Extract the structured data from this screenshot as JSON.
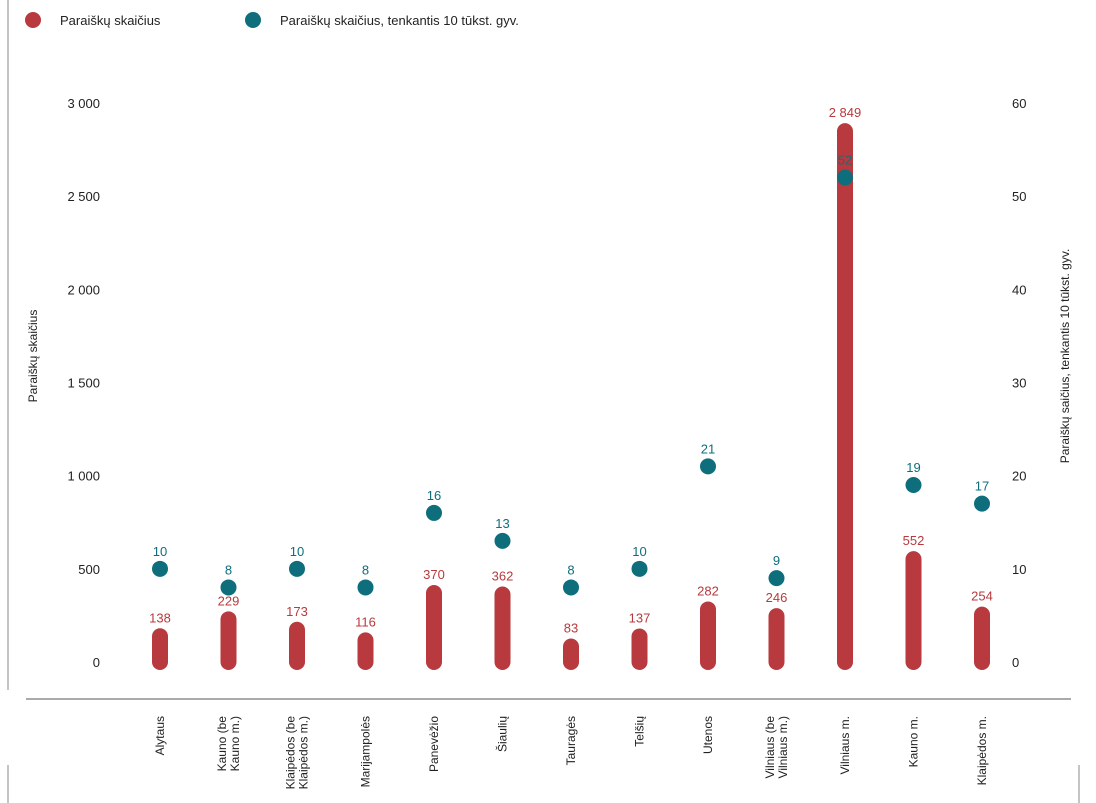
{
  "chart_data": {
    "type": "bar",
    "categories": [
      [
        "Alytaus"
      ],
      [
        "Kauno (be",
        "Kauno m.)"
      ],
      [
        "Klaipėdos (be",
        "Klaipėdos m.)"
      ],
      [
        "Marijampolės"
      ],
      [
        "Panevėžio"
      ],
      [
        "Šiaulių"
      ],
      [
        "Tauragės"
      ],
      [
        "Telšių"
      ],
      [
        "Utenos"
      ],
      [
        "Vilniaus (be",
        "Vilniaus m.)"
      ],
      [
        "Vilniaus m."
      ],
      [
        "Kauno m."
      ],
      [
        "Klaipėdos m."
      ]
    ],
    "series": [
      {
        "name": "Paraiškų skaičius",
        "axis": "left",
        "color": "#b83a3e",
        "values": [
          138,
          229,
          173,
          116,
          370,
          362,
          83,
          137,
          282,
          246,
          2849,
          552,
          254
        ],
        "labels": [
          "138",
          "229",
          "173",
          "116",
          "370",
          "362",
          "83",
          "137",
          "282",
          "246",
          "2 849",
          "552",
          "254"
        ]
      },
      {
        "name": "Paraiškų skaičius, tenkantis 10 tūkst. gyv.",
        "axis": "right",
        "color": "#0e6e7c",
        "values": [
          10,
          8,
          10,
          8,
          16,
          13,
          8,
          10,
          21,
          9,
          52,
          19,
          17
        ],
        "labels": [
          "10",
          "8",
          "10",
          "8",
          "16",
          "13",
          "8",
          "10",
          "21",
          "9",
          "52",
          "19",
          "17"
        ]
      }
    ],
    "y_left": {
      "label": "Paraiškų skaičius",
      "ylim": [
        0,
        3000
      ],
      "ticks": [
        0,
        500,
        1000,
        1500,
        2000,
        2500,
        3000
      ],
      "tick_labels": [
        "0",
        "500",
        "1 000",
        "1 500",
        "2 000",
        "2 500",
        "3 000"
      ]
    },
    "y_right": {
      "label": "Paraiškų saičius, tenkantis 10 tūkst. gyv.",
      "ylim": [
        0,
        60
      ],
      "ticks": [
        0,
        10,
        20,
        30,
        40,
        50,
        60
      ],
      "tick_labels": [
        "0",
        "10",
        "20",
        "30",
        "40",
        "50",
        "60"
      ]
    },
    "legend_position": "top-left",
    "grid": false
  }
}
